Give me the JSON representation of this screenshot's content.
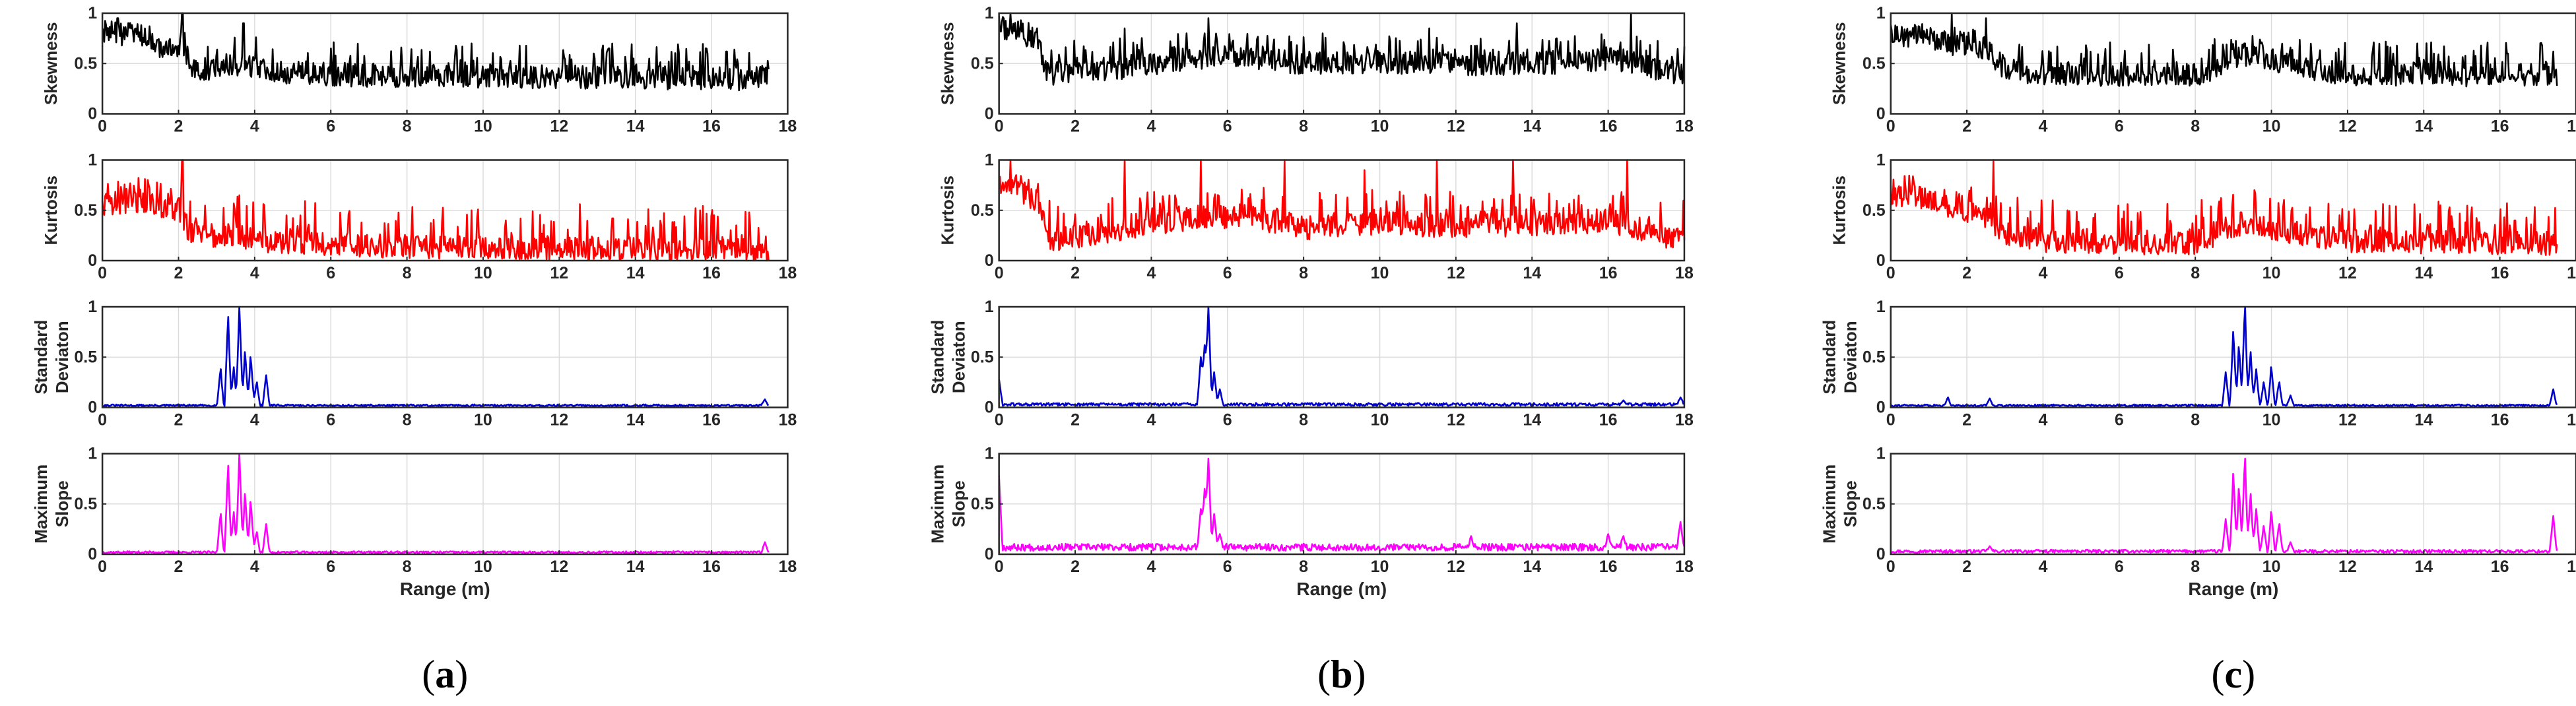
{
  "figure": {
    "shared": {
      "x_range": [
        0,
        18
      ],
      "x_ticks": [
        "0",
        "2",
        "4",
        "6",
        "8",
        "10",
        "12",
        "14",
        "16",
        "18"
      ],
      "y_range": [
        0,
        1
      ],
      "y_ticks": [
        "0",
        "0.5",
        "1"
      ],
      "xlabel": "Range (m)",
      "rows": [
        {
          "key": "skewness",
          "label_lines": [
            "Skewness"
          ],
          "color": "#000000"
        },
        {
          "key": "kurtosis",
          "label_lines": [
            "Kurtosis"
          ],
          "color": "#ff0000"
        },
        {
          "key": "std",
          "label_lines": [
            "Standard",
            "Deviaton"
          ],
          "color": "#0000cc"
        },
        {
          "key": "slope",
          "label_lines": [
            "Maximum",
            "Slope"
          ],
          "color": "#ff00ff"
        }
      ]
    },
    "panels": [
      {
        "open": "(",
        "letter": "a",
        "close": ")"
      },
      {
        "open": "(",
        "letter": "b",
        "close": ")"
      },
      {
        "open": "(",
        "letter": "c",
        "close": ")"
      }
    ]
  },
  "chart_data": [
    {
      "panel": "a",
      "type": "line",
      "x_range": [
        0,
        17.5
      ],
      "series": [
        {
          "name": "Skewness",
          "color": "#000000",
          "envelope": [
            [
              0,
              0.82
            ],
            [
              0.3,
              0.8
            ],
            [
              0.8,
              0.78
            ],
            [
              1.2,
              0.75
            ],
            [
              1.6,
              0.65
            ],
            [
              2.1,
              0.7
            ],
            [
              2.3,
              0.45
            ],
            [
              3.0,
              0.45
            ],
            [
              3.5,
              0.5
            ],
            [
              4.0,
              0.48
            ],
            [
              5.0,
              0.4
            ],
            [
              8.0,
              0.38
            ],
            [
              12.0,
              0.37
            ],
            [
              17.5,
              0.35
            ]
          ],
          "spikes": [
            [
              0.4,
              0.95
            ],
            [
              2.1,
              1.0
            ],
            [
              3.7,
              0.9
            ],
            [
              6.0,
              0.65
            ],
            [
              9.7,
              0.7
            ],
            [
              13.3,
              0.65
            ],
            [
              16.4,
              0.62
            ]
          ],
          "seed": 11
        },
        {
          "name": "Kurtosis",
          "color": "#ff0000",
          "envelope": [
            [
              0,
              0.55
            ],
            [
              0.5,
              0.58
            ],
            [
              1.0,
              0.6
            ],
            [
              1.5,
              0.55
            ],
            [
              2.0,
              0.5
            ],
            [
              2.3,
              0.28
            ],
            [
              3.0,
              0.25
            ],
            [
              3.6,
              0.25
            ],
            [
              4.0,
              0.2
            ],
            [
              6.0,
              0.16
            ],
            [
              10.0,
              0.13
            ],
            [
              14.0,
              0.12
            ],
            [
              17.5,
              0.11
            ]
          ],
          "spikes": [
            [
              2.1,
              1.0
            ],
            [
              3.6,
              0.65
            ],
            [
              5.2,
              0.45
            ],
            [
              9.7,
              0.5
            ],
            [
              13.4,
              0.42
            ],
            [
              15.7,
              0.5
            ]
          ],
          "seed": 23
        },
        {
          "name": "Standard Deviaton",
          "color": "#0000cc",
          "baseline": 0.02,
          "peaks": [
            [
              3.1,
              0.38
            ],
            [
              3.3,
              0.9
            ],
            [
              3.45,
              0.4
            ],
            [
              3.6,
              1.0
            ],
            [
              3.75,
              0.55
            ],
            [
              3.9,
              0.5
            ],
            [
              4.05,
              0.25
            ],
            [
              4.3,
              0.32
            ],
            [
              17.4,
              0.08
            ]
          ],
          "seed": 31
        },
        {
          "name": "Maximum Slope",
          "color": "#ff00ff",
          "baseline": 0.02,
          "peaks": [
            [
              3.1,
              0.4
            ],
            [
              3.3,
              0.88
            ],
            [
              3.45,
              0.42
            ],
            [
              3.6,
              1.0
            ],
            [
              3.75,
              0.6
            ],
            [
              3.9,
              0.52
            ],
            [
              4.05,
              0.22
            ],
            [
              4.3,
              0.3
            ],
            [
              17.4,
              0.12
            ]
          ],
          "seed": 37
        }
      ]
    },
    {
      "panel": "b",
      "type": "line",
      "x_range": [
        0,
        18
      ],
      "series": [
        {
          "name": "Skewness",
          "color": "#000000",
          "envelope": [
            [
              0,
              0.85
            ],
            [
              0.5,
              0.85
            ],
            [
              1.0,
              0.7
            ],
            [
              1.3,
              0.4
            ],
            [
              3.0,
              0.45
            ],
            [
              5.0,
              0.55
            ],
            [
              6.0,
              0.6
            ],
            [
              8.0,
              0.5
            ],
            [
              10.0,
              0.52
            ],
            [
              12.0,
              0.5
            ],
            [
              14.0,
              0.5
            ],
            [
              16.0,
              0.55
            ],
            [
              18.0,
              0.4
            ]
          ],
          "spikes": [
            [
              0.3,
              1.0
            ],
            [
              3.3,
              0.85
            ],
            [
              5.5,
              0.95
            ],
            [
              8.5,
              0.8
            ],
            [
              11.3,
              0.85
            ],
            [
              13.6,
              0.9
            ],
            [
              16.6,
              1.0
            ]
          ],
          "seed": 41
        },
        {
          "name": "Kurtosis",
          "color": "#ff0000",
          "envelope": [
            [
              0,
              0.7
            ],
            [
              0.5,
              0.7
            ],
            [
              1.0,
              0.6
            ],
            [
              1.3,
              0.2
            ],
            [
              3.0,
              0.3
            ],
            [
              5.0,
              0.42
            ],
            [
              6.5,
              0.45
            ],
            [
              8.0,
              0.32
            ],
            [
              10.0,
              0.38
            ],
            [
              12.0,
              0.34
            ],
            [
              14.0,
              0.36
            ],
            [
              16.0,
              0.4
            ],
            [
              18.0,
              0.2
            ]
          ],
          "spikes": [
            [
              0.3,
              1.0
            ],
            [
              3.3,
              1.0
            ],
            [
              5.3,
              1.0
            ],
            [
              7.5,
              1.0
            ],
            [
              9.6,
              0.9
            ],
            [
              11.5,
              1.0
            ],
            [
              13.5,
              1.0
            ],
            [
              16.5,
              1.0
            ]
          ],
          "seed": 53
        },
        {
          "name": "Standard Deviaton",
          "color": "#0000cc",
          "baseline": 0.03,
          "peaks": [
            [
              0.0,
              0.28
            ],
            [
              5.3,
              0.5
            ],
            [
              5.4,
              0.62
            ],
            [
              5.5,
              1.0
            ],
            [
              5.65,
              0.35
            ],
            [
              5.8,
              0.18
            ],
            [
              16.4,
              0.07
            ],
            [
              17.9,
              0.1
            ]
          ],
          "seed": 61
        },
        {
          "name": "Maximum Slope",
          "color": "#ff00ff",
          "baseline": 0.07,
          "peaks": [
            [
              0.0,
              0.78
            ],
            [
              5.3,
              0.45
            ],
            [
              5.4,
              0.65
            ],
            [
              5.5,
              0.95
            ],
            [
              5.65,
              0.4
            ],
            [
              5.8,
              0.2
            ],
            [
              12.4,
              0.18
            ],
            [
              16.0,
              0.2
            ],
            [
              16.4,
              0.18
            ],
            [
              17.9,
              0.32
            ]
          ],
          "seed": 67
        }
      ]
    },
    {
      "panel": "c",
      "type": "line",
      "x_range": [
        0,
        17.5
      ],
      "series": [
        {
          "name": "Skewness",
          "color": "#000000",
          "envelope": [
            [
              0,
              0.8
            ],
            [
              0.5,
              0.78
            ],
            [
              1.0,
              0.75
            ],
            [
              1.5,
              0.7
            ],
            [
              2.0,
              0.7
            ],
            [
              2.5,
              0.65
            ],
            [
              3.0,
              0.45
            ],
            [
              4.0,
              0.4
            ],
            [
              8.0,
              0.38
            ],
            [
              9.0,
              0.55
            ],
            [
              9.5,
              0.6
            ],
            [
              10.5,
              0.48
            ],
            [
              12.0,
              0.4
            ],
            [
              17.5,
              0.38
            ]
          ],
          "spikes": [
            [
              1.6,
              1.0
            ],
            [
              2.5,
              0.95
            ],
            [
              9.3,
              0.7
            ],
            [
              13.2,
              0.6
            ],
            [
              16.2,
              0.6
            ],
            [
              17.4,
              0.62
            ]
          ],
          "seed": 71
        },
        {
          "name": "Kurtosis",
          "color": "#ff0000",
          "envelope": [
            [
              0,
              0.65
            ],
            [
              0.5,
              0.65
            ],
            [
              1.0,
              0.6
            ],
            [
              1.5,
              0.55
            ],
            [
              2.0,
              0.5
            ],
            [
              2.5,
              0.45
            ],
            [
              3.0,
              0.25
            ],
            [
              4.0,
              0.2
            ],
            [
              8.0,
              0.17
            ],
            [
              9.0,
              0.35
            ],
            [
              9.5,
              0.38
            ],
            [
              10.5,
              0.28
            ],
            [
              12.0,
              0.2
            ],
            [
              17.5,
              0.17
            ]
          ],
          "spikes": [
            [
              2.7,
              1.0
            ],
            [
              9.2,
              0.48
            ],
            [
              12.6,
              0.35
            ],
            [
              16.4,
              0.4
            ]
          ],
          "seed": 83
        },
        {
          "name": "Standard Deviaton",
          "color": "#0000cc",
          "baseline": 0.02,
          "peaks": [
            [
              1.5,
              0.1
            ],
            [
              2.6,
              0.09
            ],
            [
              8.8,
              0.35
            ],
            [
              9.0,
              0.75
            ],
            [
              9.15,
              0.6
            ],
            [
              9.3,
              1.0
            ],
            [
              9.45,
              0.55
            ],
            [
              9.6,
              0.38
            ],
            [
              9.8,
              0.25
            ],
            [
              10.0,
              0.4
            ],
            [
              10.2,
              0.25
            ],
            [
              10.5,
              0.12
            ],
            [
              17.4,
              0.18
            ]
          ],
          "seed": 91
        },
        {
          "name": "Maximum Slope",
          "color": "#ff00ff",
          "baseline": 0.03,
          "peaks": [
            [
              2.6,
              0.08
            ],
            [
              8.8,
              0.35
            ],
            [
              9.0,
              0.8
            ],
            [
              9.15,
              0.65
            ],
            [
              9.3,
              0.95
            ],
            [
              9.45,
              0.6
            ],
            [
              9.6,
              0.45
            ],
            [
              9.8,
              0.28
            ],
            [
              10.0,
              0.42
            ],
            [
              10.2,
              0.3
            ],
            [
              10.5,
              0.12
            ],
            [
              17.4,
              0.38
            ]
          ],
          "seed": 97
        }
      ]
    }
  ]
}
